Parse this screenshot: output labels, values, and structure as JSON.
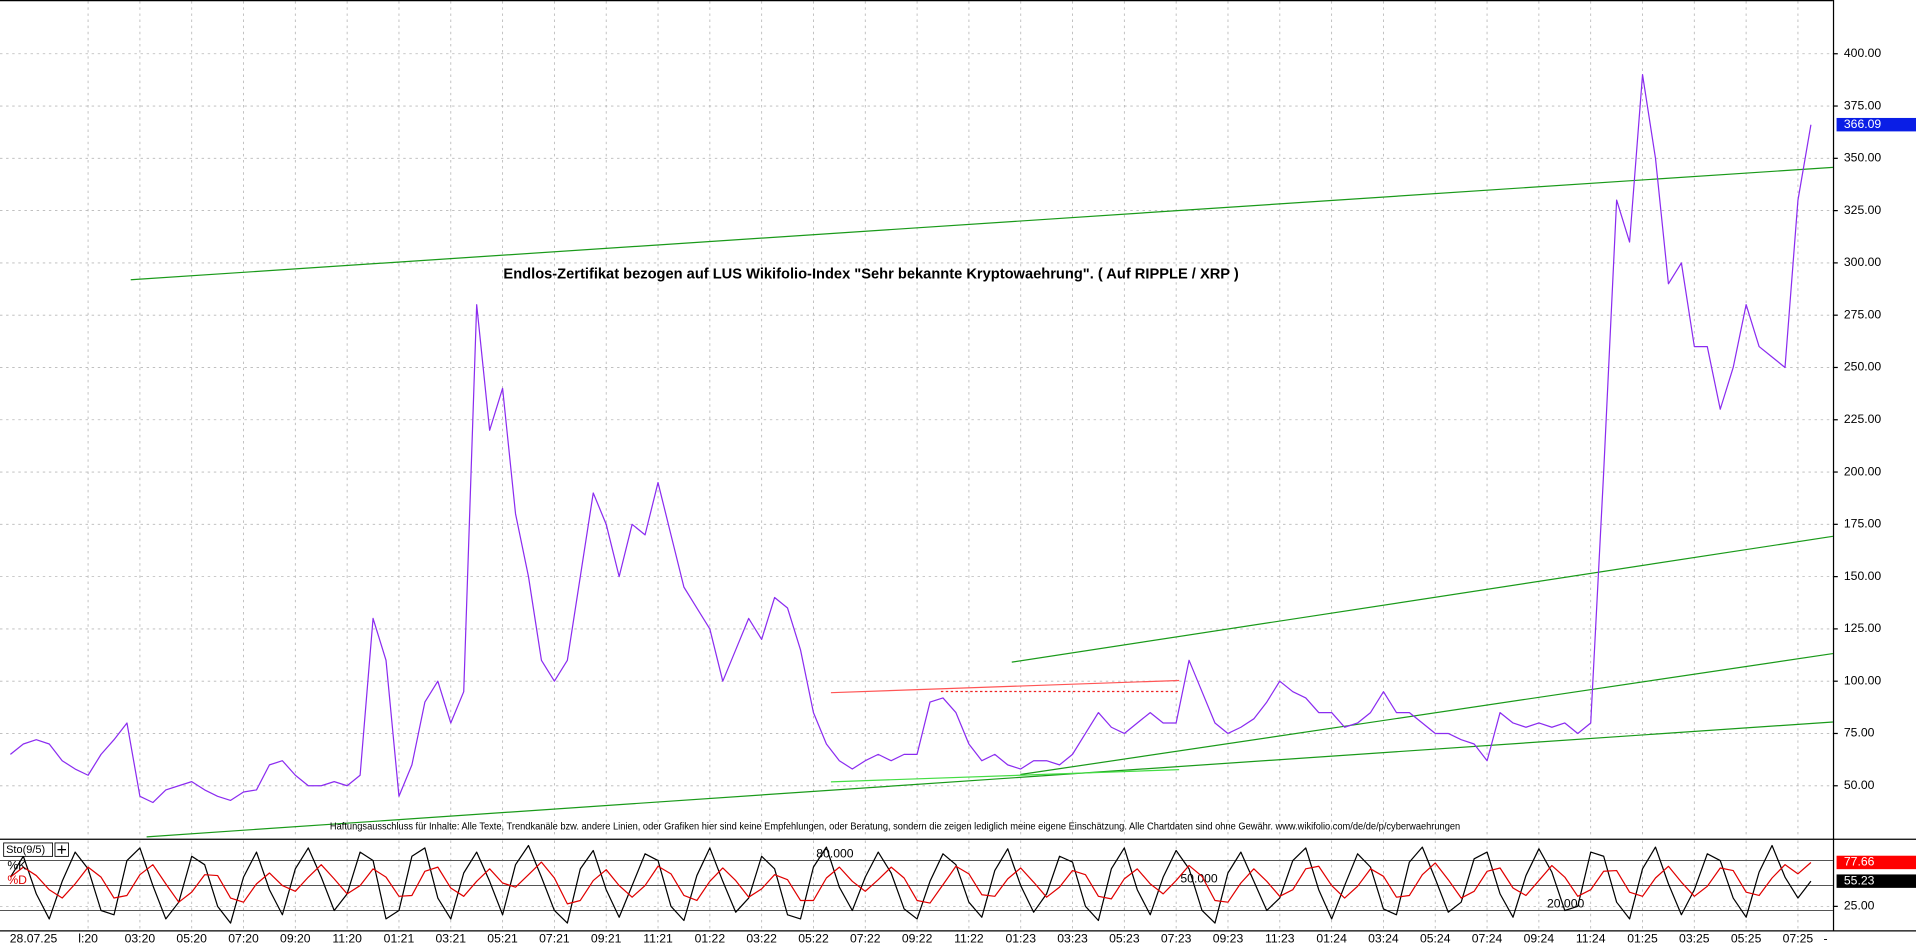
{
  "chart_data": [
    {
      "type": "line",
      "title": "Endlos-Zertifikat bezogen auf LUS Wikifolio-Index \"Sehr bekannte Kryptowaehrung\". ( Auf RIPPLE / XRP )",
      "annotation": "Haftungsausschluss für Inhalte: Alle Texte, Trendkanäle bzw. andere Linien, oder Grafiken hier sind keine Empfehlungen, oder Beratung, sondern die zeigen lediglich meine eigene Einschätzung. Alle Chartdaten sind ohne Gewähr.  www.wikifolio.com/de/de/p/cyberwaehrungen",
      "series": [
        {
          "name": null,
          "color": "#8b2cf0",
          "values": [
            65,
            70,
            72,
            70,
            62,
            58,
            55,
            65,
            72,
            80,
            45,
            42,
            48,
            50,
            52,
            48,
            45,
            43,
            47,
            48,
            60,
            62,
            55,
            50,
            50,
            52,
            50,
            55,
            130,
            110,
            45,
            60,
            90,
            100,
            80,
            95,
            280,
            220,
            240,
            180,
            150,
            110,
            100,
            110,
            150,
            190,
            175,
            150,
            175,
            170,
            195,
            170,
            145,
            135,
            125,
            100,
            115,
            130,
            120,
            140,
            135,
            115,
            85,
            70,
            62,
            58,
            62,
            65,
            62,
            65,
            65,
            90,
            92,
            85,
            70,
            62,
            65,
            60,
            58,
            62,
            62,
            60,
            65,
            75,
            85,
            78,
            75,
            80,
            85,
            80,
            80,
            110,
            95,
            80,
            75,
            78,
            82,
            90,
            100,
            95,
            92,
            85,
            85,
            78,
            80,
            85,
            95,
            85,
            85,
            80,
            75,
            75,
            72,
            70,
            62,
            85,
            80,
            78,
            80,
            78,
            80,
            75,
            80,
            200,
            330,
            310,
            390,
            350,
            290,
            300,
            260,
            260,
            230,
            250,
            280,
            260,
            255,
            250,
            330,
            366.09
          ]
        }
      ],
      "xlim": [
        -0.8,
        140.7
      ],
      "ylim": [
        25,
        425.7
      ],
      "yticks": [
        {
          "value": 50,
          "label": "50.00"
        },
        {
          "value": 75,
          "label": "75.00"
        },
        {
          "value": 100,
          "label": "100.00"
        },
        {
          "value": 125,
          "label": "125.00"
        },
        {
          "value": 150,
          "label": "150.00"
        },
        {
          "value": 175,
          "label": "175.00"
        },
        {
          "value": 200,
          "label": "200.00"
        },
        {
          "value": 225,
          "label": "225.00"
        },
        {
          "value": 250,
          "label": "250.00"
        },
        {
          "value": 275,
          "label": "275.00"
        },
        {
          "value": 300,
          "label": "300.00"
        },
        {
          "value": 325,
          "label": "325.00"
        },
        {
          "value": 350,
          "label": "350.00"
        },
        {
          "value": 375,
          "label": "375.00"
        },
        {
          "value": 400,
          "label": "400.00"
        }
      ],
      "grid": true
    },
    {
      "type": "line",
      "title": "Sto(9/5)",
      "date_label": "28.07.25",
      "series": [
        {
          "name": "%K",
          "color": "#000000",
          "values": [
            60,
            85,
            40,
            10,
            55,
            90,
            70,
            20,
            15,
            80,
            95,
            50,
            10,
            30,
            85,
            75,
            25,
            5,
            60,
            90,
            45,
            15,
            70,
            95,
            60,
            20,
            40,
            90,
            80,
            10,
            20,
            85,
            95,
            35,
            10,
            65,
            90,
            55,
            15,
            75,
            98,
            60,
            20,
            5,
            70,
            92,
            45,
            12,
            50,
            88,
            80,
            25,
            8,
            62,
            95,
            55,
            18,
            35,
            85,
            70,
            15,
            10,
            72,
            96,
            48,
            20,
            60,
            90,
            65,
            22,
            10,
            55,
            88,
            75,
            30,
            12,
            68,
            94,
            50,
            18,
            40,
            85,
            78,
            25,
            8,
            70,
            95,
            45,
            15,
            60,
            92,
            70,
            20,
            5,
            65,
            90,
            55,
            20,
            35,
            80,
            95,
            45,
            10,
            50,
            88,
            72,
            22,
            15,
            78,
            96,
            58,
            18,
            30,
            82,
            90,
            40,
            12,
            62,
            94,
            66,
            20,
            25,
            90,
            85,
            30,
            10,
            70,
            96,
            52,
            15,
            45,
            88,
            80,
            35,
            12,
            66,
            98,
            60,
            35,
            55.23
          ]
        },
        {
          "name": "%D",
          "color": "#e00000",
          "values": [
            60,
            72,
            62,
            45,
            35,
            52,
            72,
            60,
            35,
            38,
            63,
            75,
            52,
            30,
            42,
            63,
            62,
            35,
            30,
            52,
            65,
            50,
            43,
            60,
            75,
            58,
            40,
            50,
            70,
            60,
            37,
            38,
            67,
            72,
            47,
            37,
            55,
            70,
            53,
            48,
            63,
            78,
            59,
            28,
            32,
            56,
            69,
            50,
            36,
            50,
            73,
            64,
            38,
            32,
            55,
            71,
            56,
            36,
            46,
            63,
            57,
            32,
            32,
            59,
            72,
            55,
            43,
            57,
            72,
            59,
            32,
            29,
            51,
            73,
            64,
            39,
            37,
            58,
            71,
            54,
            36,
            48,
            68,
            63,
            37,
            34,
            58,
            70,
            52,
            40,
            56,
            74,
            61,
            32,
            30,
            53,
            70,
            55,
            37,
            45,
            70,
            73,
            50,
            35,
            49,
            70,
            61,
            36,
            38,
            63,
            77,
            57,
            35,
            43,
            67,
            71,
            47,
            38,
            56,
            74,
            60,
            37,
            45,
            67,
            68,
            42,
            37,
            59,
            73,
            54,
            37,
            49,
            71,
            68,
            42,
            38,
            59,
            75,
            64,
            77.66
          ]
        }
      ],
      "xlim": [
        -0.8,
        140.7
      ],
      "ylim": [
        0,
        100
      ],
      "yticks": [
        {
          "value": 25,
          "label": "25.00"
        }
      ],
      "levels": [
        {
          "value": 80,
          "label": "80.000"
        },
        {
          "value": 50,
          "label": "50.000"
        },
        {
          "value": 20,
          "label": "20.000"
        }
      ],
      "xticks": [
        {
          "value": 6,
          "label": "l:20"
        },
        {
          "value": 10,
          "label": "03:20"
        },
        {
          "value": 14,
          "label": "05:20"
        },
        {
          "value": 18,
          "label": "07:20"
        },
        {
          "value": 22,
          "label": "09:20"
        },
        {
          "value": 26,
          "label": "11:20"
        },
        {
          "value": 30,
          "label": "01:21"
        },
        {
          "value": 34,
          "label": "03:21"
        },
        {
          "value": 38,
          "label": "05:21"
        },
        {
          "value": 42,
          "label": "07:21"
        },
        {
          "value": 46,
          "label": "09:21"
        },
        {
          "value": 50,
          "label": "11:21"
        },
        {
          "value": 54,
          "label": "01:22"
        },
        {
          "value": 58,
          "label": "03:22"
        },
        {
          "value": 62,
          "label": "05:22"
        },
        {
          "value": 66,
          "label": "07:22"
        },
        {
          "value": 70,
          "label": "09:22"
        },
        {
          "value": 74,
          "label": "11:22"
        },
        {
          "value": 78,
          "label": "01:23"
        },
        {
          "value": 82,
          "label": "03:23"
        },
        {
          "value": 86,
          "label": "05:23"
        },
        {
          "value": 90,
          "label": "07:23"
        },
        {
          "value": 94,
          "label": "09:23"
        },
        {
          "value": 98,
          "label": "11:23"
        },
        {
          "value": 102,
          "label": "01:24"
        },
        {
          "value": 106,
          "label": "03:24"
        },
        {
          "value": 110,
          "label": "05:24"
        },
        {
          "value": 114,
          "label": "07:24"
        },
        {
          "value": 118,
          "label": "09:24"
        },
        {
          "value": 122,
          "label": "11:24"
        },
        {
          "value": 126,
          "label": "01:25"
        },
        {
          "value": 130,
          "label": "03:25"
        },
        {
          "value": 134,
          "label": "05:25"
        },
        {
          "value": 138,
          "label": "07:25"
        }
      ],
      "grid": true
    }
  ]
}
